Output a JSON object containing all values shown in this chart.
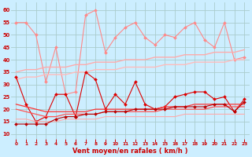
{
  "title": "Vent moyen/en rafales ( km/h )",
  "background_color": "#cceeff",
  "grid_color": "#aacccc",
  "hours": [
    0,
    1,
    2,
    3,
    4,
    5,
    6,
    7,
    8,
    9,
    10,
    11,
    12,
    13,
    14,
    15,
    16,
    17,
    18,
    19,
    20,
    21,
    22,
    23
  ],
  "ylim": [
    8,
    63
  ],
  "yticks": [
    10,
    15,
    20,
    25,
    30,
    35,
    40,
    45,
    50,
    55,
    60
  ],
  "series": [
    {
      "name": "rafales_max",
      "color": "#ff8888",
      "linewidth": 0.8,
      "marker": "D",
      "markersize": 2.0,
      "data": [
        55,
        55,
        50,
        31,
        45,
        26,
        27,
        58,
        60,
        43,
        49,
        53,
        55,
        49,
        46,
        50,
        49,
        53,
        55,
        48,
        45,
        55,
        40,
        41
      ]
    },
    {
      "name": "rafales_trend1",
      "color": "#ffaaaa",
      "linewidth": 1.0,
      "marker": null,
      "markersize": 0,
      "data": [
        35,
        36,
        36,
        37,
        37,
        37,
        38,
        38,
        39,
        39,
        39,
        40,
        40,
        40,
        41,
        41,
        41,
        42,
        42,
        42,
        43,
        43,
        43,
        44
      ]
    },
    {
      "name": "rafales_trend2",
      "color": "#ffbbbb",
      "linewidth": 1.0,
      "marker": null,
      "markersize": 0,
      "data": [
        32,
        33,
        33,
        34,
        34,
        34,
        35,
        35,
        36,
        36,
        36,
        37,
        37,
        37,
        37,
        38,
        38,
        38,
        39,
        39,
        39,
        39,
        40,
        40
      ]
    },
    {
      "name": "vent_data",
      "color": "#dd0000",
      "linewidth": 0.8,
      "marker": "D",
      "markersize": 2.0,
      "data": [
        33,
        22,
        15,
        17,
        26,
        26,
        17,
        35,
        32,
        20,
        26,
        22,
        31,
        22,
        20,
        21,
        25,
        26,
        27,
        27,
        24,
        25,
        19,
        24
      ]
    },
    {
      "name": "vent_trend1",
      "color": "#ff3333",
      "linewidth": 0.9,
      "marker": null,
      "markersize": 0,
      "data": [
        22,
        21,
        20,
        19,
        19,
        19,
        19,
        19,
        20,
        20,
        20,
        20,
        20,
        20,
        20,
        21,
        21,
        21,
        22,
        22,
        22,
        22,
        22,
        22
      ]
    },
    {
      "name": "vent_trend2",
      "color": "#ff5555",
      "linewidth": 0.9,
      "marker": null,
      "markersize": 0,
      "data": [
        20,
        19,
        18,
        17,
        17,
        18,
        18,
        18,
        18,
        19,
        19,
        19,
        19,
        19,
        19,
        20,
        20,
        20,
        20,
        20,
        21,
        21,
        21,
        21
      ]
    },
    {
      "name": "vent_trend3",
      "color": "#ffaaaa",
      "linewidth": 0.8,
      "marker": null,
      "markersize": 0,
      "data": [
        16,
        16,
        15,
        15,
        15,
        16,
        16,
        16,
        16,
        17,
        17,
        17,
        17,
        17,
        17,
        17,
        17,
        18,
        18,
        18,
        18,
        18,
        18,
        18
      ]
    },
    {
      "name": "vent_min",
      "color": "#bb0000",
      "linewidth": 0.8,
      "marker": "D",
      "markersize": 2.0,
      "data": [
        14,
        14,
        14,
        14,
        16,
        17,
        17,
        18,
        18,
        19,
        19,
        19,
        20,
        20,
        20,
        20,
        21,
        21,
        21,
        21,
        22,
        22,
        19,
        23
      ]
    }
  ]
}
